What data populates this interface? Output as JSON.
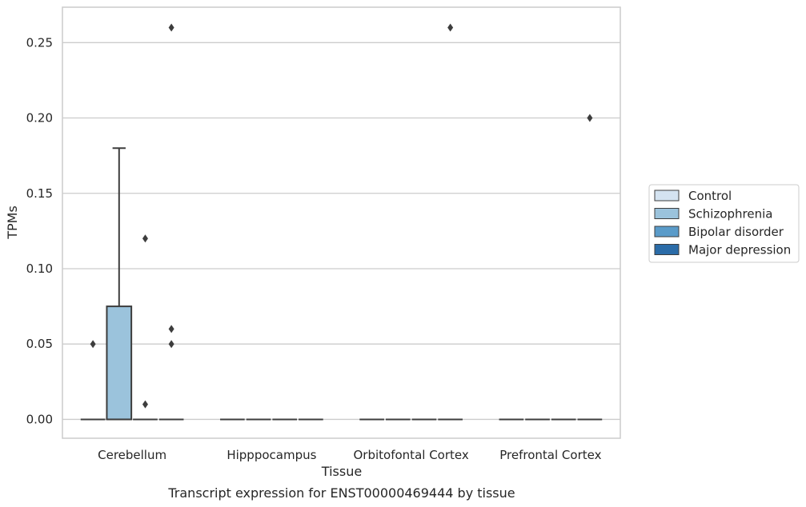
{
  "chart_data": {
    "type": "box",
    "title": "",
    "caption": "Transcript expression for ENST00000469444 by tissue",
    "xlabel": "Tissue",
    "ylabel": "TPMs",
    "ylim": [
      -0.0125,
      0.2735
    ],
    "yticks": [
      0.0,
      0.05,
      0.1,
      0.15,
      0.2,
      0.25
    ],
    "ytick_labels": [
      "0.00",
      "0.05",
      "0.10",
      "0.15",
      "0.20",
      "0.25"
    ],
    "grid": "horizontal",
    "legend_position": "right",
    "categories": [
      "Cerebellum",
      "Hipppocampus",
      "Orbitofontal Cortex",
      "Prefrontal Cortex"
    ],
    "series": [
      {
        "name": "Control",
        "color": "#d4e3f1",
        "boxes": [
          {
            "category": "Cerebellum",
            "q1": 0,
            "median": 0,
            "q3": 0,
            "whisker_low": 0,
            "whisker_high": 0,
            "outliers": [
              0.05
            ]
          },
          {
            "category": "Hipppocampus",
            "q1": 0,
            "median": 0,
            "q3": 0,
            "whisker_low": 0,
            "whisker_high": 0,
            "outliers": []
          },
          {
            "category": "Orbitofontal Cortex",
            "q1": 0,
            "median": 0,
            "q3": 0,
            "whisker_low": 0,
            "whisker_high": 0,
            "outliers": []
          },
          {
            "category": "Prefrontal Cortex",
            "q1": 0,
            "median": 0,
            "q3": 0,
            "whisker_low": 0,
            "whisker_high": 0,
            "outliers": []
          }
        ]
      },
      {
        "name": "Schizophrenia",
        "color": "#9bc3dc",
        "boxes": [
          {
            "category": "Cerebellum",
            "q1": 0,
            "median": 0,
            "q3": 0.075,
            "whisker_low": 0,
            "whisker_high": 0.18,
            "outliers": []
          },
          {
            "category": "Hipppocampus",
            "q1": 0,
            "median": 0,
            "q3": 0,
            "whisker_low": 0,
            "whisker_high": 0,
            "outliers": []
          },
          {
            "category": "Orbitofontal Cortex",
            "q1": 0,
            "median": 0,
            "q3": 0,
            "whisker_low": 0,
            "whisker_high": 0,
            "outliers": []
          },
          {
            "category": "Prefrontal Cortex",
            "q1": 0,
            "median": 0,
            "q3": 0,
            "whisker_low": 0,
            "whisker_high": 0,
            "outliers": []
          }
        ]
      },
      {
        "name": "Bipolar disorder",
        "color": "#5a9bc9",
        "boxes": [
          {
            "category": "Cerebellum",
            "q1": 0,
            "median": 0,
            "q3": 0,
            "whisker_low": 0,
            "whisker_high": 0,
            "outliers": [
              0.12,
              0.01
            ]
          },
          {
            "category": "Hipppocampus",
            "q1": 0,
            "median": 0,
            "q3": 0,
            "whisker_low": 0,
            "whisker_high": 0,
            "outliers": []
          },
          {
            "category": "Orbitofontal Cortex",
            "q1": 0,
            "median": 0,
            "q3": 0,
            "whisker_low": 0,
            "whisker_high": 0,
            "outliers": []
          },
          {
            "category": "Prefrontal Cortex",
            "q1": 0,
            "median": 0,
            "q3": 0,
            "whisker_low": 0,
            "whisker_high": 0,
            "outliers": []
          }
        ]
      },
      {
        "name": "Major depression",
        "color": "#2b6ca8",
        "boxes": [
          {
            "category": "Cerebellum",
            "q1": 0,
            "median": 0,
            "q3": 0,
            "whisker_low": 0,
            "whisker_high": 0,
            "outliers": [
              0.26,
              0.06,
              0.05
            ]
          },
          {
            "category": "Hipppocampus",
            "q1": 0,
            "median": 0,
            "q3": 0,
            "whisker_low": 0,
            "whisker_high": 0,
            "outliers": []
          },
          {
            "category": "Orbitofontal Cortex",
            "q1": 0,
            "median": 0,
            "q3": 0,
            "whisker_low": 0,
            "whisker_high": 0,
            "outliers": [
              0.26
            ]
          },
          {
            "category": "Prefrontal Cortex",
            "q1": 0,
            "median": 0,
            "q3": 0,
            "whisker_low": 0,
            "whisker_high": 0,
            "outliers": [
              0.2
            ]
          }
        ]
      }
    ]
  }
}
